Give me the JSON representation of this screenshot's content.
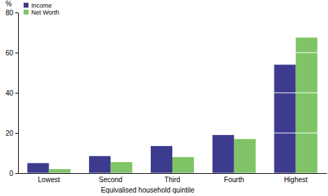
{
  "chart_data": {
    "type": "bar",
    "y_label": "%",
    "x_label": "Equivalised household quintile",
    "categories": [
      "Lowest",
      "Second",
      "Third",
      "Fourth",
      "Highest"
    ],
    "series": [
      {
        "name": "Income",
        "color": "#3d3b8e",
        "values": [
          5,
          8.5,
          13.5,
          19,
          54
        ]
      },
      {
        "name": "Net Worth",
        "color": "#80c467",
        "values": [
          2,
          5.5,
          8,
          17,
          67.5
        ]
      }
    ],
    "ylim": [
      0,
      80
    ],
    "yticks": [
      0,
      20,
      40,
      60,
      80
    ],
    "grid": true,
    "legend": "upper left"
  }
}
